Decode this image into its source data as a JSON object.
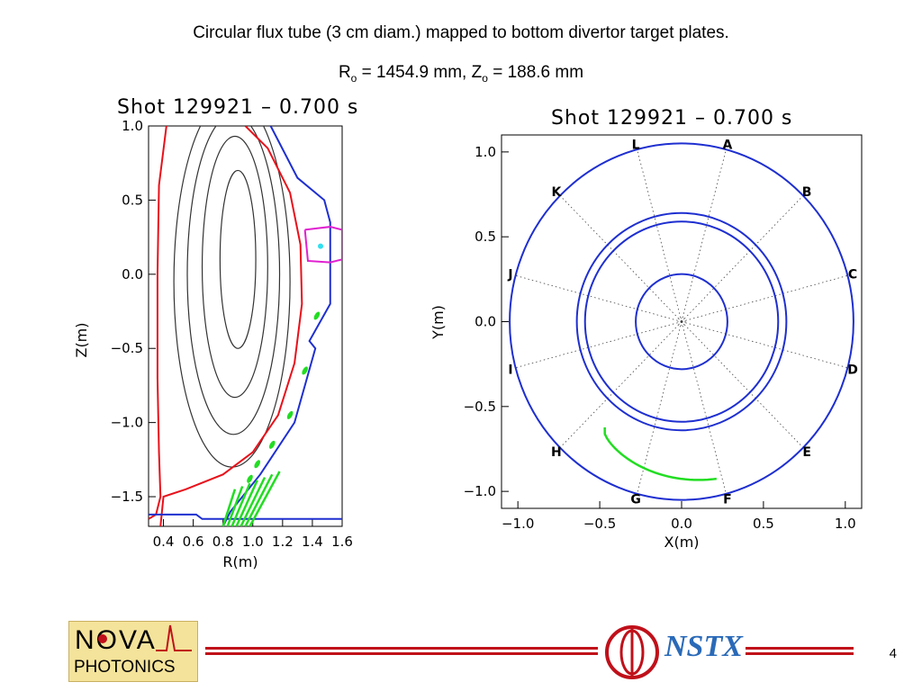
{
  "slide": {
    "title": "Circular flux tube (3 cm diam.) mapped to bottom divertor target plates.",
    "subtitle": {
      "r_label": "R",
      "r_sub": "o",
      "r_value": " = 1454.9 mm, ",
      "z_label": "Z",
      "z_sub": "o",
      "z_value": " = 188.6 mm"
    },
    "page_number": "4"
  },
  "logos": {
    "nova_line1": "NOVA",
    "nova_line2": "PHOTONICS",
    "nstx": "NSTX"
  },
  "colors": {
    "blue": "#1e2fd0",
    "red": "#e8101a",
    "green": "#22dd22",
    "magenta": "#e020d0",
    "cyan": "#30e0f0",
    "nova_bg": "#f4e39a",
    "nstx_red": "#c0101a",
    "nstx_blue": "#2a6ab8"
  },
  "chart_data": [
    {
      "type": "scatter",
      "title": "Shot 129921 – 0.700 s",
      "xlabel": "R(m)",
      "ylabel": "Z(m)",
      "xlim": [
        0.3,
        1.6
      ],
      "ylim": [
        -1.7,
        1.0
      ],
      "xticks": [
        "0.4",
        "0.6",
        "0.8",
        "1.0",
        "1.2",
        "1.4",
        "1.6"
      ],
      "yticks": [
        "1.0",
        "0.5",
        "0.0",
        "−0.5",
        "−1.0",
        "−1.5"
      ],
      "flux_surfaces": [
        {
          "name": "inner",
          "center": [
            0.9,
            0.1
          ],
          "half_width": 0.12,
          "half_height": 0.6
        },
        {
          "name": "surface-2",
          "center": [
            0.88,
            0.05
          ],
          "half_width": 0.22,
          "half_height": 0.88
        },
        {
          "name": "surface-3",
          "center": [
            0.87,
            0.0
          ],
          "half_width": 0.31,
          "half_height": 1.08
        },
        {
          "name": "surface-4",
          "center": [
            0.86,
            -0.05
          ],
          "half_width": 0.39,
          "half_height": 1.25
        }
      ],
      "separatrix_color": "red",
      "flux_tube_point": {
        "R": 1.455,
        "Z": 0.189
      },
      "target_spots": [
        {
          "R": 1.43,
          "Z": -0.28
        },
        {
          "R": 1.35,
          "Z": -0.65
        },
        {
          "R": 1.25,
          "Z": -0.95
        },
        {
          "R": 1.13,
          "Z": -1.15
        },
        {
          "R": 1.03,
          "Z": -1.28
        },
        {
          "R": 0.98,
          "Z": -1.38
        }
      ]
    },
    {
      "type": "scatter",
      "title": "Shot 129921 – 0.700 s",
      "xlabel": "X(m)",
      "ylabel": "Y(m)",
      "xlim": [
        -1.1,
        1.1
      ],
      "ylim": [
        -1.1,
        1.1
      ],
      "xticks": [
        "−1.0",
        "−0.5",
        "0.0",
        "0.5",
        "1.0"
      ],
      "yticks": [
        "1.0",
        "0.5",
        "0.0",
        "−0.5",
        "−1.0"
      ],
      "circles_radius": [
        1.05,
        0.64,
        0.59,
        0.28
      ],
      "sector_labels": [
        "A",
        "B",
        "C",
        "D",
        "E",
        "F",
        "G",
        "H",
        "I",
        "J",
        "K",
        "L"
      ],
      "footprint_arc": {
        "r_start": 0.78,
        "r_end": 0.95,
        "angle_start_deg": 233,
        "angle_end_deg": 283
      }
    }
  ]
}
